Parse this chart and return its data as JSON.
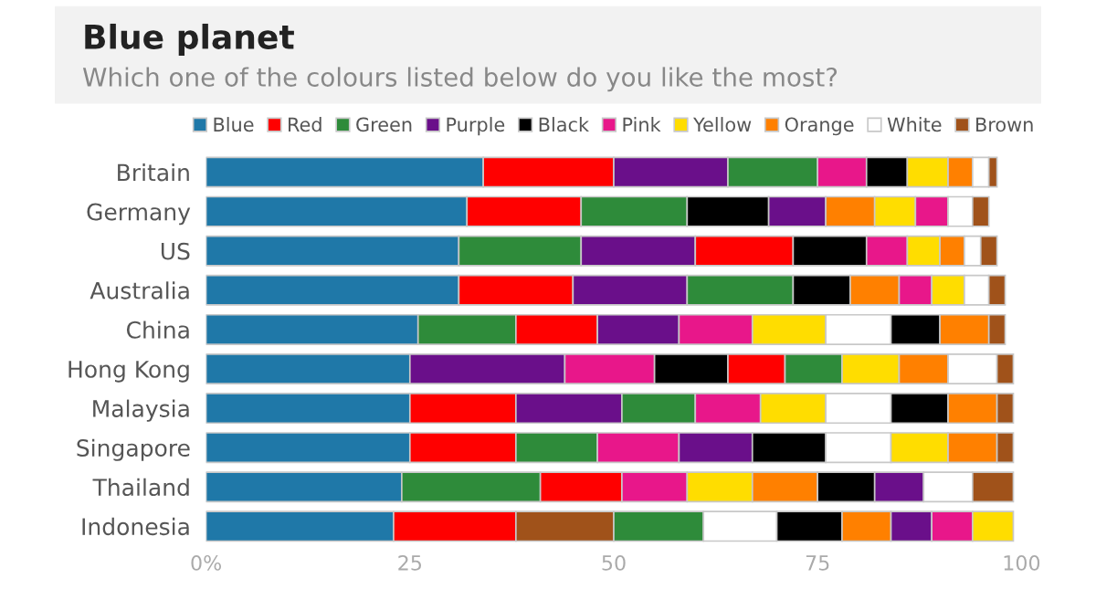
{
  "chart_data": {
    "type": "bar",
    "orientation": "horizontal",
    "stacked": true,
    "title": "Blue planet",
    "subtitle": "Which one of the colours listed below do you like the most?",
    "categories": [
      "Britain",
      "Germany",
      "US",
      "Australia",
      "China",
      "Hong Kong",
      "Malaysia",
      "Singapore",
      "Thailand",
      "Indonesia"
    ],
    "series": [
      {
        "name": "Blue",
        "color": "#1f78a8",
        "values": [
          34,
          32,
          31,
          31,
          26,
          25,
          25,
          25,
          24,
          23
        ]
      },
      {
        "name": "Red",
        "color": "#ff0000",
        "values": [
          16,
          14,
          12,
          14,
          10,
          7,
          13,
          13,
          10,
          15
        ]
      },
      {
        "name": "Green",
        "color": "#2e8b3a",
        "values": [
          11,
          13,
          15,
          13,
          12,
          7,
          9,
          10,
          17,
          11
        ]
      },
      {
        "name": "Purple",
        "color": "#6a0f8a",
        "values": [
          14,
          7,
          14,
          14,
          10,
          19,
          13,
          9,
          6,
          5
        ]
      },
      {
        "name": "Black",
        "color": "#000000",
        "values": [
          5,
          10,
          9,
          7,
          6,
          9,
          7,
          9,
          7,
          8
        ]
      },
      {
        "name": "Pink",
        "color": "#e8178a",
        "values": [
          6,
          4,
          5,
          4,
          9,
          11,
          8,
          10,
          8,
          5
        ]
      },
      {
        "name": "Yellow",
        "color": "#ffdd00",
        "values": [
          5,
          5,
          4,
          4,
          9,
          7,
          8,
          7,
          8,
          5
        ]
      },
      {
        "name": "Orange",
        "color": "#ff8000",
        "values": [
          3,
          6,
          3,
          6,
          6,
          6,
          6,
          6,
          8,
          6
        ]
      },
      {
        "name": "White",
        "color": "#ffffff",
        "values": [
          2,
          3,
          2,
          3,
          8,
          6,
          8,
          8,
          6,
          9
        ]
      },
      {
        "name": "Brown",
        "color": "#a0521a",
        "values": [
          1,
          2,
          2,
          2,
          2,
          2,
          2,
          2,
          5,
          12
        ]
      }
    ],
    "xlim": [
      0,
      100
    ],
    "xticks": [
      {
        "value": 0,
        "label": "0%"
      },
      25,
      50,
      75,
      100
    ],
    "legend": "top",
    "grid": false
  }
}
